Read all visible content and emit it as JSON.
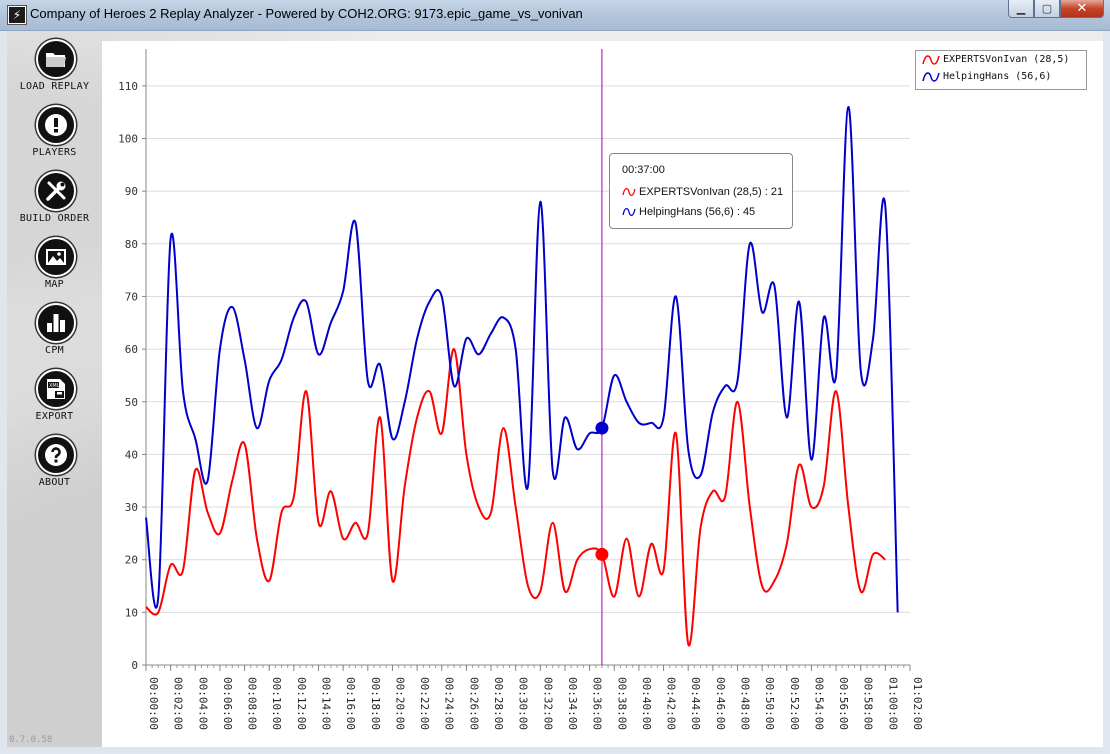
{
  "window": {
    "title": "Company of Heroes 2 Replay Analyzer - Powered by COH2.ORG: 9173.epic_game_vs_vonivan",
    "minimize_label": "▁",
    "maximize_label": "▢",
    "close_label": "✕"
  },
  "sidebar": {
    "items": [
      {
        "label": "LOAD REPLAY",
        "icon": "folder-icon"
      },
      {
        "label": "PLAYERS",
        "icon": "exclamation-icon"
      },
      {
        "label": "BUILD ORDER",
        "icon": "wrench-screwdriver-icon"
      },
      {
        "label": "MAP",
        "icon": "picture-icon"
      },
      {
        "label": "CPM",
        "icon": "bar-chart-icon"
      },
      {
        "label": "EXPORT",
        "icon": "xml-export-icon"
      },
      {
        "label": "ABOUT",
        "icon": "question-icon"
      }
    ]
  },
  "version": "0.7.0.58",
  "tooltip": {
    "time": "00:37:00",
    "rows": [
      {
        "text": "EXPERTSVonIvan (28,5) : 21",
        "color": "#ff0000"
      },
      {
        "text": "HelpingHans (56,6) : 45",
        "color": "#0000cc"
      }
    ]
  },
  "chart_data": {
    "type": "line",
    "x_unit": "hh:mm:ss",
    "x_range": [
      "00:00:00",
      "01:02:00"
    ],
    "ylim": [
      0,
      117
    ],
    "yticks": [
      0,
      10,
      20,
      30,
      40,
      50,
      60,
      70,
      80,
      90,
      100,
      110
    ],
    "xticks": [
      "00:00:00",
      "00:02:00",
      "00:04:00",
      "00:06:00",
      "00:08:00",
      "00:10:00",
      "00:12:00",
      "00:14:00",
      "00:16:00",
      "00:18:00",
      "00:20:00",
      "00:22:00",
      "00:24:00",
      "00:26:00",
      "00:28:00",
      "00:30:00",
      "00:32:00",
      "00:34:00",
      "00:36:00",
      "00:38:00",
      "00:40:00",
      "00:42:00",
      "00:44:00",
      "00:46:00",
      "00:48:00",
      "00:50:00",
      "00:52:00",
      "00:54:00",
      "00:56:00",
      "00:58:00",
      "01:00:00",
      "01:02:00"
    ],
    "grid": true,
    "legend_position": "top-right",
    "crosshair_x": "00:37:00",
    "series": [
      {
        "name": "EXPERTSVonIvan (28,5)",
        "color": "#ff0000",
        "x": [
          "00:00:00",
          "00:01:00",
          "00:02:00",
          "00:03:00",
          "00:04:00",
          "00:05:00",
          "00:06:00",
          "00:07:00",
          "00:08:00",
          "00:09:00",
          "00:10:00",
          "00:11:00",
          "00:12:00",
          "00:13:00",
          "00:14:00",
          "00:15:00",
          "00:16:00",
          "00:17:00",
          "00:18:00",
          "00:19:00",
          "00:20:00",
          "00:21:00",
          "00:22:00",
          "00:23:00",
          "00:24:00",
          "00:25:00",
          "00:26:00",
          "00:27:00",
          "00:28:00",
          "00:29:00",
          "00:30:00",
          "00:31:00",
          "00:32:00",
          "00:33:00",
          "00:34:00",
          "00:35:00",
          "00:36:00",
          "00:37:00",
          "00:38:00",
          "00:39:00",
          "00:40:00",
          "00:41:00",
          "00:42:00",
          "00:43:00",
          "00:44:00",
          "00:45:00",
          "00:46:00",
          "00:47:00",
          "00:48:00",
          "00:49:00",
          "00:50:00",
          "00:51:00",
          "00:52:00",
          "00:53:00",
          "00:54:00",
          "00:55:00",
          "00:56:00",
          "00:57:00",
          "00:58:00",
          "00:59:00",
          "01:00:00",
          "01:01:00"
        ],
        "values": [
          11,
          10,
          19,
          18,
          37,
          29,
          25,
          35,
          42,
          24,
          16,
          29,
          32,
          52,
          27,
          33,
          24,
          27,
          25,
          47,
          16,
          34,
          47,
          52,
          44,
          60,
          40,
          30,
          29,
          45,
          30,
          15,
          14,
          27,
          14,
          20,
          22,
          21,
          13,
          24,
          13,
          23,
          18,
          44,
          4,
          26,
          33,
          32,
          50,
          30,
          15,
          16,
          23,
          38,
          30,
          34,
          52,
          30,
          14,
          21,
          20,
          null
        ]
      },
      {
        "name": "HelpingHans (56,6)",
        "color": "#0000cc",
        "x": [
          "00:00:00",
          "00:01:00",
          "00:02:00",
          "00:03:00",
          "00:04:00",
          "00:05:00",
          "00:06:00",
          "00:07:00",
          "00:08:00",
          "00:09:00",
          "00:10:00",
          "00:11:00",
          "00:12:00",
          "00:13:00",
          "00:14:00",
          "00:15:00",
          "00:16:00",
          "00:17:00",
          "00:18:00",
          "00:19:00",
          "00:20:00",
          "00:21:00",
          "00:22:00",
          "00:23:00",
          "00:24:00",
          "00:25:00",
          "00:26:00",
          "00:27:00",
          "00:28:00",
          "00:29:00",
          "00:30:00",
          "00:31:00",
          "00:32:00",
          "00:33:00",
          "00:34:00",
          "00:35:00",
          "00:36:00",
          "00:37:00",
          "00:38:00",
          "00:39:00",
          "00:40:00",
          "00:41:00",
          "00:42:00",
          "00:43:00",
          "00:44:00",
          "00:45:00",
          "00:46:00",
          "00:47:00",
          "00:48:00",
          "00:49:00",
          "00:50:00",
          "00:51:00",
          "00:52:00",
          "00:53:00",
          "00:54:00",
          "00:55:00",
          "00:56:00",
          "00:57:00",
          "00:58:00",
          "00:59:00",
          "01:00:00",
          "01:01:00"
        ],
        "values": [
          28,
          13,
          81,
          52,
          43,
          35,
          60,
          68,
          58,
          45,
          54,
          58,
          66,
          69,
          59,
          65,
          71,
          84,
          54,
          57,
          43,
          50,
          62,
          69,
          70,
          53,
          62,
          59,
          63,
          66,
          60,
          34,
          88,
          37,
          47,
          41,
          44,
          45,
          55,
          50,
          46,
          46,
          47,
          70,
          41,
          36,
          48,
          53,
          54,
          80,
          67,
          72,
          47,
          69,
          39,
          66,
          55,
          106,
          56,
          62,
          87,
          10
        ]
      }
    ]
  }
}
